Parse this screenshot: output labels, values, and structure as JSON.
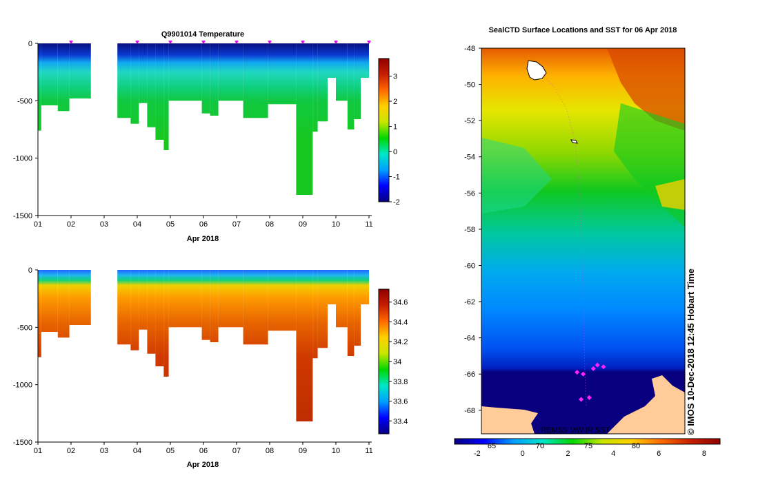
{
  "chart_data": [
    {
      "type": "heatmap",
      "title": "Q9901014  Temperature",
      "xlabel": "Apr 2018",
      "x_ticks": [
        "01",
        "02",
        "03",
        "04",
        "05",
        "06",
        "07",
        "08",
        "09",
        "10",
        "11"
      ],
      "y_ticks": [
        "0",
        "-500",
        "-1000",
        "-1500"
      ],
      "xlim": [
        1,
        11
      ],
      "ylim": [
        -1500,
        0
      ],
      "colorbar_ticks": [
        "3",
        "2",
        "1",
        "0",
        "-1",
        "-2"
      ],
      "colorbar_range": [
        -2,
        3.7
      ],
      "colorscale": [
        "#08007f",
        "#0000ff",
        "#00a0ff",
        "#00e6c8",
        "#00d800",
        "#c8e600",
        "#ffd000",
        "#ff6a00",
        "#c81e00",
        "#8f0000"
      ],
      "gap": [
        2.6,
        3.4
      ],
      "profiles": [
        {
          "x0": 1.0,
          "x1": 1.1,
          "bottom": -760
        },
        {
          "x0": 1.1,
          "x1": 1.6,
          "bottom": -540
        },
        {
          "x0": 1.6,
          "x1": 1.95,
          "bottom": -590
        },
        {
          "x0": 1.95,
          "x1": 2.6,
          "bottom": -480
        },
        {
          "x0": 3.4,
          "x1": 3.8,
          "bottom": -650
        },
        {
          "x0": 3.8,
          "x1": 4.05,
          "bottom": -700
        },
        {
          "x0": 4.05,
          "x1": 4.3,
          "bottom": -520
        },
        {
          "x0": 4.3,
          "x1": 4.55,
          "bottom": -730
        },
        {
          "x0": 4.55,
          "x1": 4.8,
          "bottom": -840
        },
        {
          "x0": 4.8,
          "x1": 4.95,
          "bottom": -930
        },
        {
          "x0": 4.95,
          "x1": 5.95,
          "bottom": -500
        },
        {
          "x0": 5.95,
          "x1": 6.2,
          "bottom": -610
        },
        {
          "x0": 6.2,
          "x1": 6.45,
          "bottom": -630
        },
        {
          "x0": 6.45,
          "x1": 7.2,
          "bottom": -500
        },
        {
          "x0": 7.2,
          "x1": 7.95,
          "bottom": -650
        },
        {
          "x0": 7.95,
          "x1": 8.8,
          "bottom": -530
        },
        {
          "x0": 8.8,
          "x1": 9.3,
          "bottom": -1320
        },
        {
          "x0": 9.3,
          "x1": 9.45,
          "bottom": -770
        },
        {
          "x0": 9.45,
          "x1": 9.75,
          "bottom": -680
        },
        {
          "x0": 9.75,
          "x1": 10.0,
          "bottom": -300
        },
        {
          "x0": 10.0,
          "x1": 10.35,
          "bottom": -500
        },
        {
          "x0": 10.35,
          "x1": 10.55,
          "bottom": -750
        },
        {
          "x0": 10.55,
          "x1": 10.75,
          "bottom": -660
        },
        {
          "x0": 10.75,
          "x1": 11.0,
          "bottom": -300
        }
      ],
      "marker_days": [
        2,
        4,
        5,
        6,
        7,
        8,
        9,
        10,
        11
      ]
    },
    {
      "type": "heatmap",
      "title": "",
      "xlabel": "Apr 2018",
      "x_ticks": [
        "01",
        "02",
        "03",
        "04",
        "05",
        "06",
        "07",
        "08",
        "09",
        "10",
        "11"
      ],
      "y_ticks": [
        "0",
        "-500",
        "-1000",
        "-1500"
      ],
      "xlim": [
        1,
        11
      ],
      "ylim": [
        -1500,
        0
      ],
      "colorbar_ticks": [
        "34.6",
        "34.4",
        "34.2",
        "34",
        "33.8",
        "33.6",
        "33.4"
      ],
      "colorbar_range": [
        33.27,
        34.73
      ],
      "colorscale": [
        "#08007f",
        "#0000ff",
        "#00a0ff",
        "#00e6c8",
        "#00d800",
        "#c8e600",
        "#ffd000",
        "#ff6a00",
        "#c81e00",
        "#8f0000"
      ],
      "gap": [
        2.6,
        3.4
      ]
    },
    {
      "type": "heatmap",
      "title": "SealCTD Surface Locations and SST for 06 Apr 2018",
      "y_ticks": [
        "-48",
        "-50",
        "-52",
        "-54",
        "-56",
        "-58",
        "-60",
        "-62",
        "-64",
        "-66",
        "-68"
      ],
      "ylim": [
        -69.3,
        -48
      ],
      "colorbar_ticks": [
        "-2",
        "0",
        "2",
        "4",
        "6",
        "8"
      ],
      "colorbar_range": [
        -3,
        8.7
      ],
      "colorscale": [
        "#08007f",
        "#0000ff",
        "#00a0ff",
        "#00e6c8",
        "#00d800",
        "#c8e600",
        "#ffd000",
        "#ff6a00",
        "#c81e00",
        "#8f0000"
      ],
      "overlay_ticks": [
        "65",
        "70",
        "75",
        "80"
      ],
      "map_label": "REMSS MW IR SST",
      "land_color": "#ffcc99",
      "seal_points": [
        [
          -66,
          0.5
        ],
        [
          -65.9,
          0.47
        ],
        [
          -65.7,
          0.55
        ],
        [
          -65.6,
          0.6
        ],
        [
          -65.5,
          0.57
        ],
        [
          -67.3,
          0.53
        ],
        [
          -67.4,
          0.49
        ]
      ]
    }
  ],
  "credit": "© IMOS 10-Dec-2018 12:45 Hobart Time"
}
